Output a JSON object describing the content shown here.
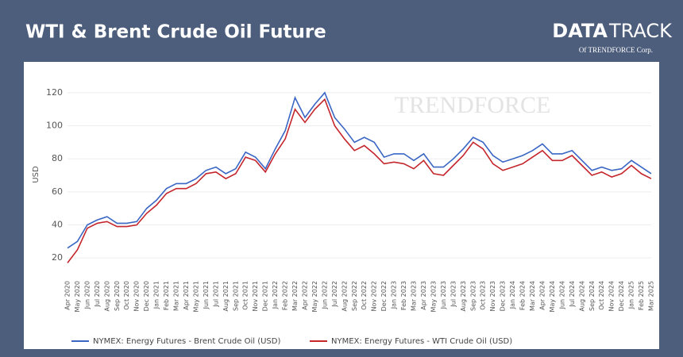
{
  "chart_data": {
    "type": "line",
    "title": "WTI & Brent Crude Oil Future",
    "ylabel": "USD",
    "categories": [
      "Apr 2020",
      "May 2020",
      "Jun 2020",
      "Jul 2020",
      "Aug 2020",
      "Sep 2020",
      "Oct 2020",
      "Nov 2020",
      "Dec 2020",
      "Jan 2021",
      "Feb 2021",
      "Mar 2021",
      "Apr 2021",
      "May 2021",
      "Jun 2021",
      "Jul 2021",
      "Aug 2021",
      "Sep 2021",
      "Oct 2021",
      "Nov 2021",
      "Dec 2021",
      "Jan 2022",
      "Feb 2022",
      "Mar 2022",
      "Apr 2022",
      "May 2022",
      "Jun 2022",
      "Jul 2022",
      "Aug 2022",
      "Sep 2022",
      "Oct 2022",
      "Nov 2022",
      "Dec 2022",
      "Jan 2023",
      "Feb 2023",
      "Mar 2023",
      "Apr 2023",
      "May 2023",
      "Jun 2023",
      "Jul 2023",
      "Aug 2023",
      "Sep 2023",
      "Oct 2023",
      "Nov 2023",
      "Dec 2023",
      "Jan 2024",
      "Feb 2024",
      "Mar 2024",
      "Apr 2024",
      "May 2024",
      "Jun 2024",
      "Jul 2024",
      "Aug 2024",
      "Sep 2024",
      "Oct 2024",
      "Nov 2024",
      "Dec 2024",
      "Jan 2025",
      "Feb 2025",
      "Mar 2025"
    ],
    "series": [
      {
        "name": "NYMEX: Energy Futures - Brent Crude Oil (USD)",
        "color": "#3a66c4",
        "values": [
          26,
          30,
          40,
          43,
          45,
          41,
          41,
          42,
          50,
          55,
          62,
          65,
          65,
          68,
          73,
          75,
          71,
          74,
          84,
          81,
          74,
          86,
          97,
          117,
          105,
          113,
          120,
          105,
          98,
          90,
          93,
          90,
          81,
          83,
          83,
          79,
          83,
          75,
          75,
          80,
          86,
          93,
          90,
          82,
          78,
          80,
          82,
          85,
          89,
          83,
          83,
          85,
          79,
          73,
          75,
          73,
          74,
          79,
          75,
          71
        ]
      },
      {
        "name": "NYMEX: Energy Futures - WTI Crude Oil (USD)",
        "color": "#c4262c",
        "values": [
          17,
          25,
          38,
          41,
          42,
          39,
          39,
          40,
          47,
          52,
          59,
          62,
          62,
          65,
          71,
          72,
          68,
          71,
          81,
          79,
          72,
          83,
          92,
          110,
          102,
          110,
          116,
          100,
          92,
          85,
          88,
          83,
          77,
          78,
          77,
          74,
          79,
          71,
          70,
          76,
          82,
          90,
          86,
          77,
          73,
          75,
          77,
          81,
          85,
          79,
          79,
          82,
          76,
          70,
          72,
          69,
          71,
          76,
          71,
          68
        ]
      }
    ],
    "ylim": [
      10,
      130
    ],
    "yticks": [
      20,
      40,
      60,
      80,
      100,
      120
    ],
    "grid": true,
    "legend": "bottom"
  },
  "branding": {
    "logo_bold": "DATA",
    "logo_light": "TRACK",
    "logo_sub": "Of TRENDFORCE Corp.",
    "watermark": "TRENDFORCE"
  }
}
